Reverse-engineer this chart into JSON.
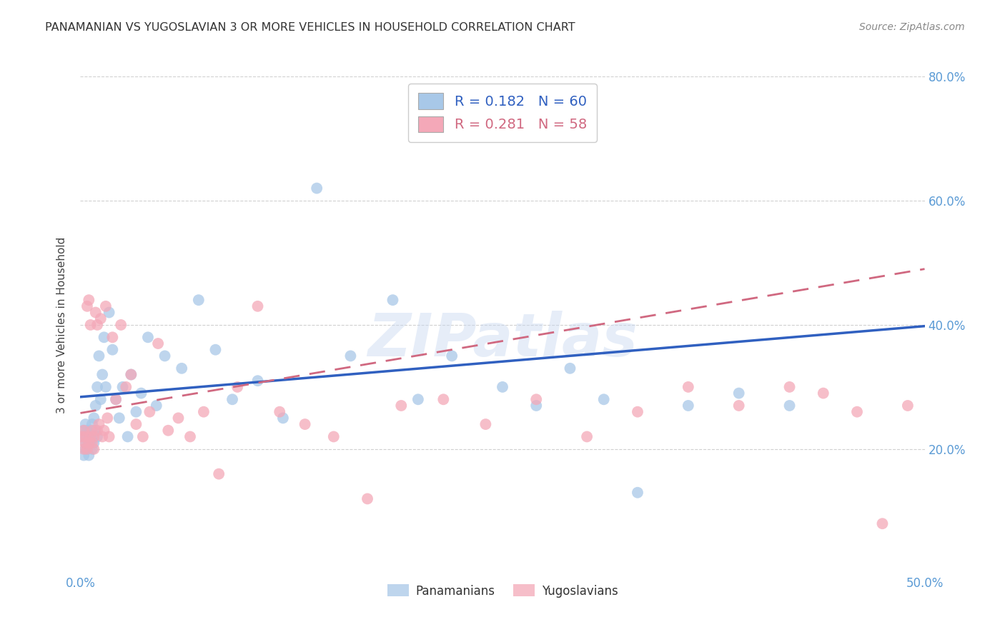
{
  "title": "PANAMANIAN VS YUGOSLAVIAN 3 OR MORE VEHICLES IN HOUSEHOLD CORRELATION CHART",
  "source": "Source: ZipAtlas.com",
  "ylabel": "3 or more Vehicles in Household",
  "watermark": "ZIPatlas",
  "xlim": [
    0.0,
    0.5
  ],
  "ylim": [
    0.0,
    0.8
  ],
  "xticks": [
    0.0,
    0.1,
    0.2,
    0.3,
    0.4,
    0.5
  ],
  "yticks": [
    0.2,
    0.4,
    0.6,
    0.8
  ],
  "background_color": "#ffffff",
  "grid_color": "#d0d0d0",
  "panamanian_color": "#a8c8e8",
  "yugoslavian_color": "#f4a8b8",
  "panamanian_line_color": "#3060c0",
  "yugoslavian_line_color": "#d06880",
  "R_pan": 0.182,
  "N_pan": 60,
  "R_yug": 0.281,
  "N_yug": 58,
  "pan_x": [
    0.001,
    0.002,
    0.002,
    0.003,
    0.003,
    0.003,
    0.004,
    0.004,
    0.004,
    0.005,
    0.005,
    0.005,
    0.006,
    0.006,
    0.006,
    0.007,
    0.007,
    0.007,
    0.008,
    0.008,
    0.009,
    0.009,
    0.01,
    0.01,
    0.011,
    0.012,
    0.013,
    0.014,
    0.015,
    0.017,
    0.019,
    0.021,
    0.023,
    0.025,
    0.028,
    0.03,
    0.033,
    0.036,
    0.04,
    0.045,
    0.05,
    0.06,
    0.07,
    0.08,
    0.09,
    0.105,
    0.12,
    0.14,
    0.16,
    0.185,
    0.2,
    0.22,
    0.25,
    0.27,
    0.29,
    0.31,
    0.33,
    0.36,
    0.39,
    0.42
  ],
  "pan_y": [
    0.22,
    0.19,
    0.23,
    0.21,
    0.24,
    0.2,
    0.22,
    0.2,
    0.23,
    0.21,
    0.22,
    0.19,
    0.23,
    0.21,
    0.22,
    0.24,
    0.2,
    0.22,
    0.25,
    0.21,
    0.27,
    0.23,
    0.3,
    0.22,
    0.35,
    0.28,
    0.32,
    0.38,
    0.3,
    0.42,
    0.36,
    0.28,
    0.25,
    0.3,
    0.22,
    0.32,
    0.26,
    0.29,
    0.38,
    0.27,
    0.35,
    0.33,
    0.44,
    0.36,
    0.28,
    0.31,
    0.25,
    0.62,
    0.35,
    0.44,
    0.28,
    0.35,
    0.3,
    0.27,
    0.33,
    0.28,
    0.13,
    0.27,
    0.29,
    0.27
  ],
  "yug_x": [
    0.001,
    0.002,
    0.002,
    0.003,
    0.003,
    0.004,
    0.004,
    0.005,
    0.005,
    0.006,
    0.006,
    0.007,
    0.007,
    0.008,
    0.008,
    0.009,
    0.01,
    0.01,
    0.011,
    0.012,
    0.013,
    0.014,
    0.015,
    0.016,
    0.017,
    0.019,
    0.021,
    0.024,
    0.027,
    0.03,
    0.033,
    0.037,
    0.041,
    0.046,
    0.052,
    0.058,
    0.065,
    0.073,
    0.082,
    0.093,
    0.105,
    0.118,
    0.133,
    0.15,
    0.17,
    0.19,
    0.215,
    0.24,
    0.27,
    0.3,
    0.33,
    0.36,
    0.39,
    0.42,
    0.44,
    0.46,
    0.475,
    0.49
  ],
  "yug_y": [
    0.22,
    0.2,
    0.23,
    0.21,
    0.22,
    0.43,
    0.2,
    0.21,
    0.44,
    0.22,
    0.4,
    0.21,
    0.23,
    0.2,
    0.22,
    0.42,
    0.23,
    0.4,
    0.24,
    0.41,
    0.22,
    0.23,
    0.43,
    0.25,
    0.22,
    0.38,
    0.28,
    0.4,
    0.3,
    0.32,
    0.24,
    0.22,
    0.26,
    0.37,
    0.23,
    0.25,
    0.22,
    0.26,
    0.16,
    0.3,
    0.43,
    0.26,
    0.24,
    0.22,
    0.12,
    0.27,
    0.28,
    0.24,
    0.28,
    0.22,
    0.26,
    0.3,
    0.27,
    0.3,
    0.29,
    0.26,
    0.08,
    0.27
  ],
  "pan_line_x0": 0.0,
  "pan_line_y0": 0.284,
  "pan_line_x1": 0.5,
  "pan_line_y1": 0.398,
  "yug_line_x0": 0.0,
  "yug_line_y0": 0.258,
  "yug_line_x1": 0.5,
  "yug_line_y1": 0.49
}
